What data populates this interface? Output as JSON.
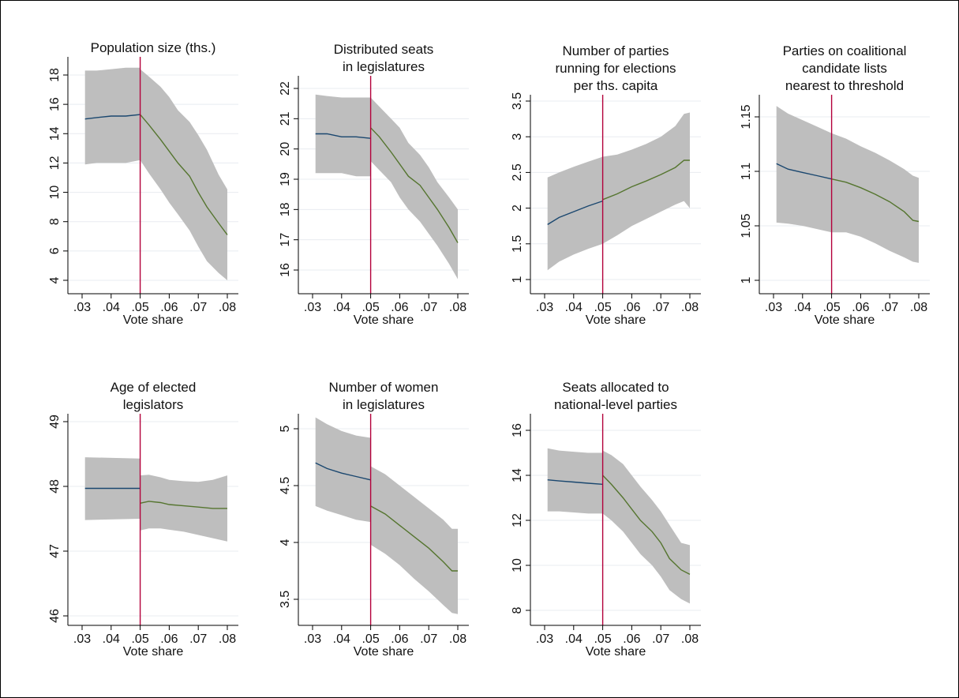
{
  "chart_data": [
    {
      "type": "line",
      "title": [
        "Population size (ths.)"
      ],
      "xlabel": "Vote share",
      "xticks": [
        ".03",
        ".04",
        ".05",
        ".06",
        ".07",
        ".08"
      ],
      "xlim": [
        0.03,
        0.08
      ],
      "ylim": [
        4,
        18
      ],
      "yticks": [
        "4",
        "6",
        "8",
        "10",
        "12",
        "14",
        "16",
        "18"
      ],
      "threshold": 0.05,
      "grid": true,
      "left": {
        "x": [
          0.031,
          0.035,
          0.04,
          0.045,
          0.05
        ],
        "y": [
          15.0,
          15.1,
          15.2,
          15.2,
          15.3
        ],
        "lower": [
          11.9,
          12.0,
          12.0,
          12.0,
          12.2
        ],
        "upper": [
          18.3,
          18.3,
          18.4,
          18.5,
          18.5
        ]
      },
      "right": {
        "x": [
          0.05,
          0.053,
          0.057,
          0.06,
          0.063,
          0.067,
          0.07,
          0.073,
          0.077,
          0.08
        ],
        "y": [
          15.3,
          14.6,
          13.6,
          12.8,
          12.0,
          11.1,
          10.0,
          9.0,
          7.9,
          7.1
        ],
        "lower": [
          12.2,
          11.3,
          10.2,
          9.3,
          8.5,
          7.4,
          6.3,
          5.3,
          4.5,
          4.0
        ],
        "upper": [
          18.4,
          17.9,
          17.2,
          16.5,
          15.6,
          14.8,
          13.9,
          12.9,
          11.2,
          10.2
        ]
      }
    },
    {
      "type": "line",
      "title": [
        "Distributed seats",
        "in legislatures"
      ],
      "xlabel": "Vote share",
      "xticks": [
        ".03",
        ".04",
        ".05",
        ".06",
        ".07",
        ".08"
      ],
      "xlim": [
        0.03,
        0.08
      ],
      "ylim": [
        16,
        22
      ],
      "yticks": [
        "16",
        "17",
        "18",
        "19",
        "20",
        "21",
        "22"
      ],
      "threshold": 0.05,
      "grid": true,
      "left": {
        "x": [
          0.031,
          0.035,
          0.04,
          0.045,
          0.05
        ],
        "y": [
          20.5,
          20.5,
          20.4,
          20.4,
          20.35
        ],
        "lower": [
          19.2,
          19.2,
          19.2,
          19.1,
          19.1
        ],
        "upper": [
          21.8,
          21.75,
          21.7,
          21.7,
          21.7
        ]
      },
      "right": {
        "x": [
          0.05,
          0.053,
          0.057,
          0.06,
          0.063,
          0.067,
          0.07,
          0.073,
          0.077,
          0.08
        ],
        "y": [
          20.7,
          20.4,
          19.9,
          19.5,
          19.1,
          18.8,
          18.4,
          18.0,
          17.4,
          16.9
        ],
        "lower": [
          19.6,
          19.3,
          18.9,
          18.4,
          18.0,
          17.6,
          17.2,
          16.8,
          16.2,
          15.7
        ],
        "upper": [
          21.7,
          21.4,
          21.0,
          20.7,
          20.2,
          19.8,
          19.4,
          18.9,
          18.4,
          18.0
        ]
      }
    },
    {
      "type": "line",
      "title": [
        "Number of parties",
        "running for elections",
        "per ths. capita"
      ],
      "xlabel": "Vote share",
      "xticks": [
        ".03",
        ".04",
        ".05",
        ".06",
        ".07",
        ".08"
      ],
      "xlim": [
        0.03,
        0.08
      ],
      "ylim": [
        1,
        3.5
      ],
      "yticks": [
        "1",
        "1.5",
        "2",
        "2.5",
        "3",
        "3.5"
      ],
      "threshold": 0.05,
      "grid": true,
      "left": {
        "x": [
          0.031,
          0.035,
          0.04,
          0.045,
          0.05
        ],
        "y": [
          1.77,
          1.87,
          1.95,
          2.03,
          2.1
        ],
        "lower": [
          1.13,
          1.25,
          1.35,
          1.43,
          1.5
        ],
        "upper": [
          2.43,
          2.5,
          2.58,
          2.65,
          2.72
        ]
      },
      "right": {
        "x": [
          0.05,
          0.055,
          0.06,
          0.065,
          0.07,
          0.075,
          0.078,
          0.08
        ],
        "y": [
          2.12,
          2.2,
          2.3,
          2.38,
          2.47,
          2.57,
          2.67,
          2.67
        ],
        "lower": [
          1.5,
          1.62,
          1.75,
          1.85,
          1.95,
          2.05,
          2.1,
          2.0
        ],
        "upper": [
          2.72,
          2.75,
          2.82,
          2.9,
          3.0,
          3.15,
          3.32,
          3.34
        ]
      }
    },
    {
      "type": "line",
      "title": [
        "Parties on coalitional",
        "candidate lists",
        "nearest to threshold"
      ],
      "xlabel": "Vote share",
      "xticks": [
        ".03",
        ".04",
        ".05",
        ".06",
        ".07",
        ".08"
      ],
      "xlim": [
        0.03,
        0.08
      ],
      "ylim": [
        1,
        1.15
      ],
      "yticks": [
        "1",
        "1.05",
        "1.1",
        "1.15"
      ],
      "threshold": 0.05,
      "grid": true,
      "left": {
        "x": [
          0.031,
          0.035,
          0.04,
          0.045,
          0.05
        ],
        "y": [
          1.107,
          1.102,
          1.099,
          1.096,
          1.093
        ],
        "lower": [
          1.053,
          1.052,
          1.05,
          1.047,
          1.044
        ],
        "upper": [
          1.16,
          1.153,
          1.147,
          1.141,
          1.135
        ]
      },
      "right": {
        "x": [
          0.05,
          0.055,
          0.06,
          0.065,
          0.07,
          0.075,
          0.078,
          0.08
        ],
        "y": [
          1.093,
          1.09,
          1.085,
          1.079,
          1.072,
          1.063,
          1.055,
          1.054
        ],
        "lower": [
          1.044,
          1.044,
          1.04,
          1.034,
          1.027,
          1.021,
          1.017,
          1.016
        ],
        "upper": [
          1.135,
          1.13,
          1.123,
          1.117,
          1.11,
          1.102,
          1.096,
          1.094
        ]
      }
    },
    {
      "type": "line",
      "title": [
        "Age of elected",
        "legislators"
      ],
      "xlabel": "Vote share",
      "xticks": [
        ".03",
        ".04",
        ".05",
        ".06",
        ".07",
        ".08"
      ],
      "xlim": [
        0.03,
        0.08
      ],
      "ylim": [
        46,
        49
      ],
      "yticks": [
        "46",
        "47",
        "48",
        "49"
      ],
      "threshold": 0.05,
      "grid": true,
      "left": {
        "x": [
          0.031,
          0.05
        ],
        "y": [
          47.97,
          47.97
        ],
        "lower": [
          47.48,
          47.5
        ],
        "upper": [
          48.45,
          48.43
        ]
      },
      "right": {
        "x": [
          0.05,
          0.053,
          0.057,
          0.06,
          0.065,
          0.07,
          0.075,
          0.08
        ],
        "y": [
          47.74,
          47.77,
          47.75,
          47.72,
          47.7,
          47.68,
          47.66,
          47.66
        ],
        "lower": [
          47.32,
          47.35,
          47.35,
          47.33,
          47.3,
          47.25,
          47.2,
          47.15
        ],
        "upper": [
          48.17,
          48.18,
          48.14,
          48.1,
          48.08,
          48.07,
          48.1,
          48.17
        ]
      }
    },
    {
      "type": "line",
      "title": [
        "Number of women",
        "in legislatures"
      ],
      "xlabel": "Vote share",
      "xticks": [
        ".03",
        ".04",
        ".05",
        ".06",
        ".07",
        ".08"
      ],
      "xlim": [
        0.03,
        0.08
      ],
      "ylim": [
        3.5,
        5
      ],
      "yticks": [
        "3.5",
        "4",
        "4.5",
        "5"
      ],
      "threshold": 0.05,
      "grid": true,
      "left": {
        "x": [
          0.031,
          0.035,
          0.04,
          0.045,
          0.05
        ],
        "y": [
          4.7,
          4.65,
          4.61,
          4.58,
          4.55
        ],
        "lower": [
          4.32,
          4.28,
          4.24,
          4.2,
          4.18
        ],
        "upper": [
          5.1,
          5.04,
          4.98,
          4.94,
          4.92
        ]
      },
      "right": {
        "x": [
          0.05,
          0.055,
          0.06,
          0.065,
          0.07,
          0.075,
          0.078,
          0.08
        ],
        "y": [
          4.32,
          4.25,
          4.15,
          4.05,
          3.95,
          3.83,
          3.75,
          3.75
        ],
        "lower": [
          3.98,
          3.9,
          3.8,
          3.68,
          3.57,
          3.45,
          3.38,
          3.37
        ],
        "upper": [
          4.67,
          4.6,
          4.5,
          4.4,
          4.3,
          4.2,
          4.12,
          4.12
        ]
      }
    },
    {
      "type": "line",
      "title": [
        "Seats allocated to",
        "national-level parties"
      ],
      "xlabel": "Vote share",
      "xticks": [
        ".03",
        ".04",
        ".05",
        ".06",
        ".07",
        ".08"
      ],
      "xlim": [
        0.03,
        0.08
      ],
      "ylim": [
        8,
        16
      ],
      "yticks": [
        "8",
        "10",
        "12",
        "14",
        "16"
      ],
      "threshold": 0.05,
      "grid": true,
      "left": {
        "x": [
          0.031,
          0.035,
          0.04,
          0.045,
          0.05
        ],
        "y": [
          13.8,
          13.75,
          13.7,
          13.65,
          13.6
        ],
        "lower": [
          12.4,
          12.4,
          12.35,
          12.3,
          12.3
        ],
        "upper": [
          15.2,
          15.1,
          15.05,
          15.0,
          15.0
        ]
      },
      "right": {
        "x": [
          0.05,
          0.053,
          0.057,
          0.06,
          0.063,
          0.067,
          0.07,
          0.073,
          0.077,
          0.08
        ],
        "y": [
          14.0,
          13.6,
          13.0,
          12.5,
          12.0,
          11.5,
          11.0,
          10.3,
          9.8,
          9.6
        ],
        "lower": [
          12.3,
          12.0,
          11.5,
          11.0,
          10.5,
          10.0,
          9.5,
          8.9,
          8.5,
          8.3
        ],
        "upper": [
          15.1,
          14.9,
          14.5,
          14.0,
          13.5,
          12.9,
          12.4,
          11.8,
          11.0,
          10.9
        ]
      }
    }
  ]
}
